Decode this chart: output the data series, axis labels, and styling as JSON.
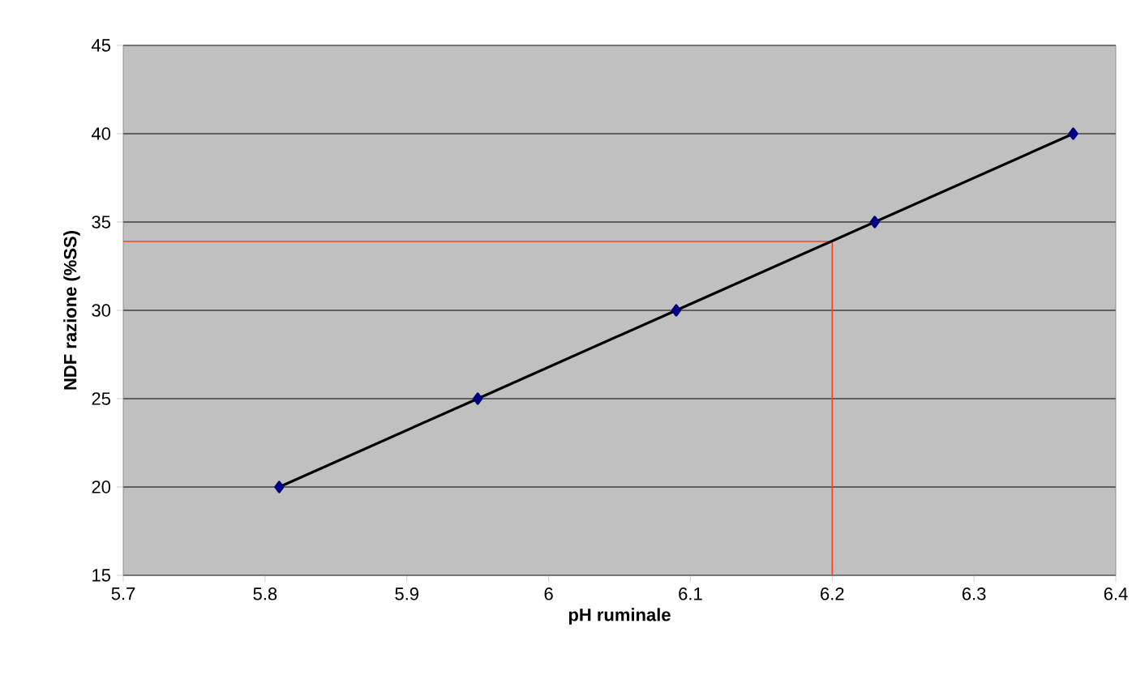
{
  "chart_data": {
    "type": "line",
    "xlabel": "pH ruminale",
    "ylabel": "NDF razione (%SS)",
    "x": [
      5.81,
      5.95,
      6.09,
      6.23,
      6.37
    ],
    "series": [
      {
        "color": "#000000",
        "values": [
          20,
          25,
          30,
          35,
          40
        ]
      }
    ],
    "xlim": [
      5.7,
      6.4
    ],
    "xticks": [
      5.7,
      5.8,
      5.9,
      6,
      6.1,
      6.2,
      6.3,
      6.4
    ],
    "ylim": [
      15,
      45
    ],
    "yticks": [
      15,
      20,
      25,
      30,
      35,
      40,
      45
    ],
    "grid": "y",
    "marker": "diamond",
    "line_style": "solid",
    "ref_lines": [
      {
        "axis": "y",
        "value": 33.9,
        "color": "#ff4020"
      },
      {
        "axis": "x",
        "value": 6.2,
        "color": "#ff4020"
      }
    ]
  }
}
